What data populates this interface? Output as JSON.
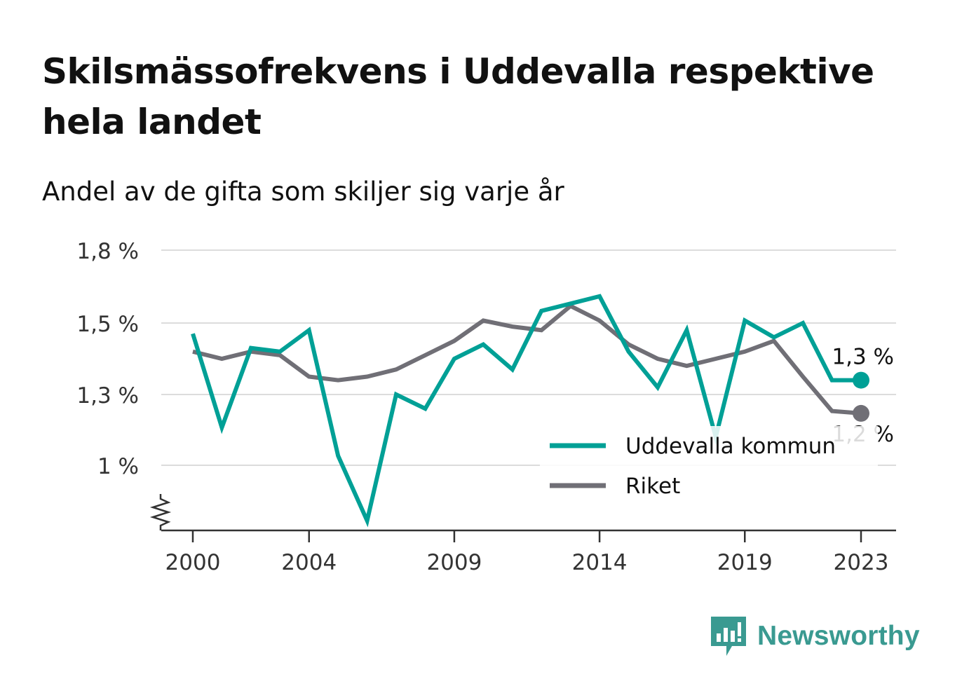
{
  "title": "Skilsmässofrekvens i Uddevalla respektive hela landet",
  "subtitle": "Andel av de gifta som skiljer sig varje år",
  "logo": {
    "text": "Newsworthy",
    "icon": "newsworthy-bar-icon",
    "color": "#3a9a91"
  },
  "chart_data": {
    "type": "line",
    "x": [
      2000,
      2001,
      2002,
      2003,
      2004,
      2005,
      2006,
      2007,
      2008,
      2009,
      2010,
      2011,
      2012,
      2013,
      2014,
      2015,
      2016,
      2017,
      2018,
      2019,
      2020,
      2021,
      2022,
      2023
    ],
    "x_tick_labels": [
      "2000",
      "2004",
      "2009",
      "2014",
      "2019",
      "2023"
    ],
    "y_ticks": [
      1.0,
      1.3,
      1.5,
      1.8
    ],
    "y_tick_labels": [
      "1 %",
      "1,3 %",
      "1,5 %",
      "1,8 %"
    ],
    "ylim": [
      0.8,
      1.8
    ],
    "axis_break": true,
    "grid": true,
    "legend_position": "right",
    "series": [
      {
        "name": "Uddevalla kommun",
        "color": "#00a096",
        "values": [
          1.47,
          1.16,
          1.43,
          1.42,
          1.48,
          1.04,
          0.83,
          1.3,
          1.24,
          1.4,
          1.44,
          1.37,
          1.55,
          1.58,
          1.61,
          1.42,
          1.32,
          1.48,
          1.12,
          1.51,
          1.46,
          1.5,
          1.34,
          1.34
        ],
        "end_label": "1,3 %"
      },
      {
        "name": "Riket",
        "color": "#706f76",
        "values": [
          1.42,
          1.4,
          1.42,
          1.41,
          1.35,
          1.34,
          1.35,
          1.37,
          1.41,
          1.45,
          1.51,
          1.49,
          1.48,
          1.57,
          1.51,
          1.44,
          1.4,
          1.38,
          1.4,
          1.42,
          1.45,
          1.35,
          1.23,
          1.22
        ],
        "end_label": "1,2 %"
      }
    ]
  }
}
